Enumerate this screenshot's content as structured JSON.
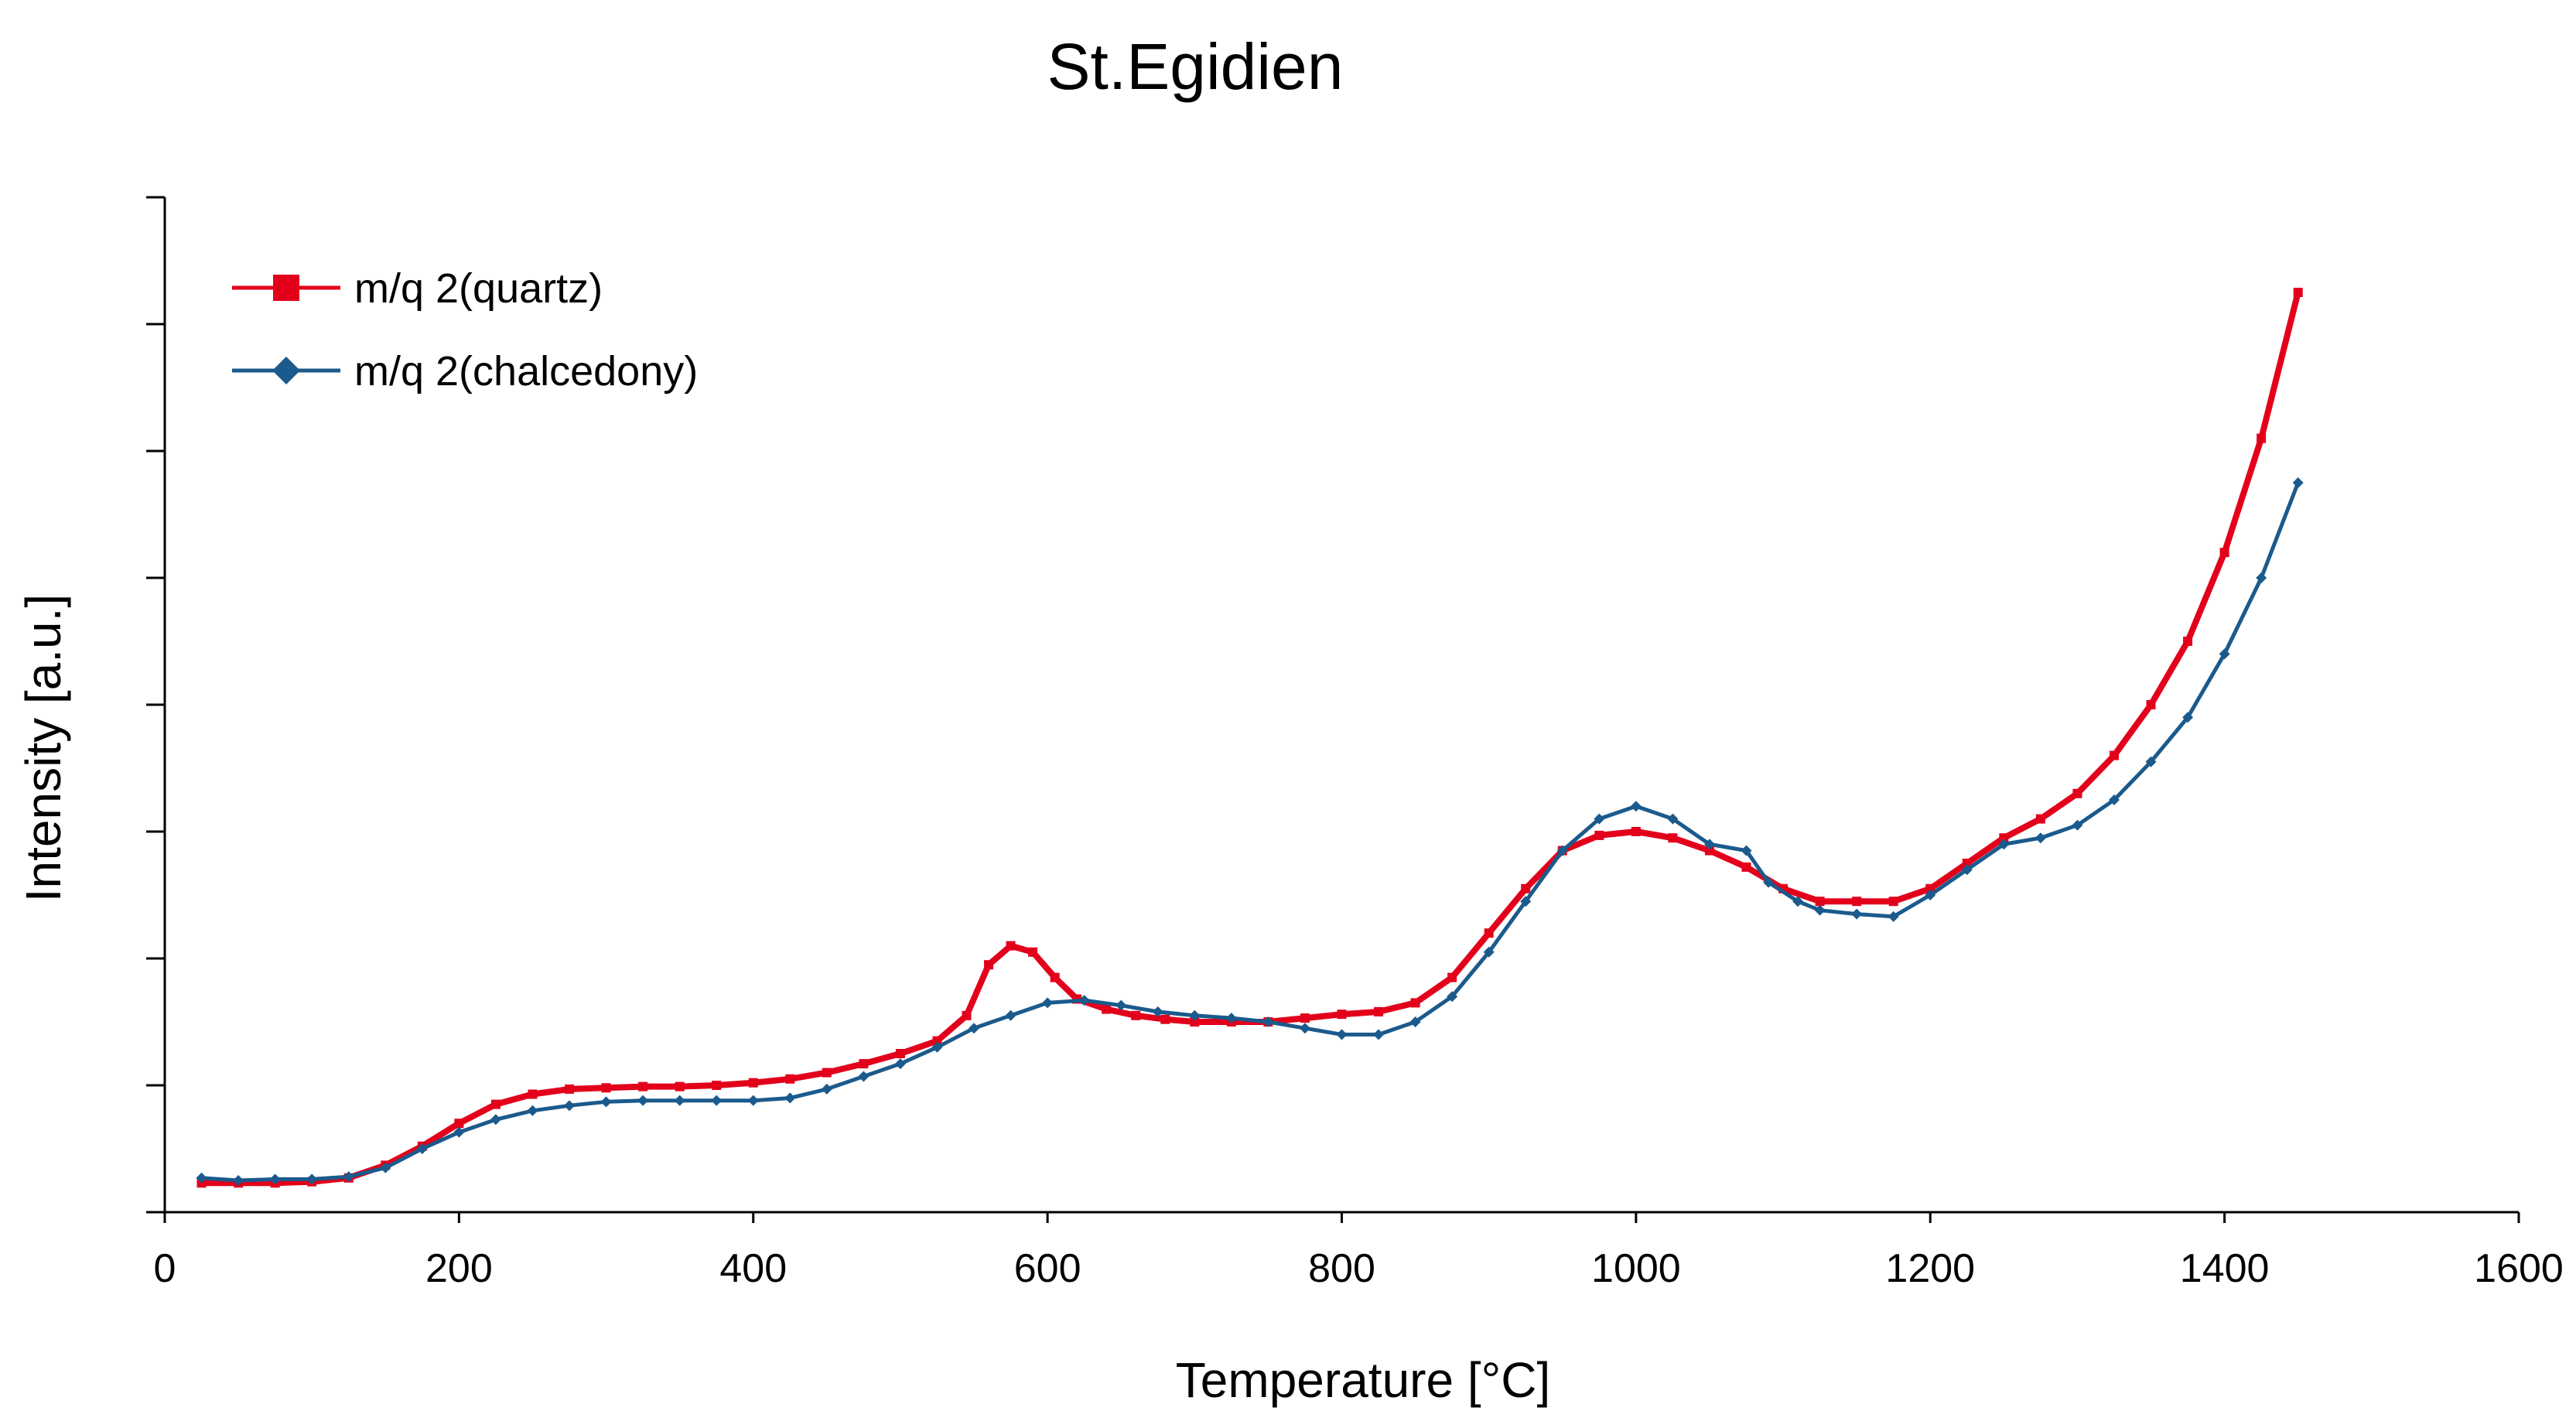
{
  "colors": {
    "quartz": "#e3001b",
    "chalcedony": "#1b5a8c",
    "axis": "#000000"
  },
  "chart_data": {
    "type": "line",
    "title": "St.Egidien",
    "xlabel": "Temperature [°C]",
    "ylabel": "Intensity [a.u.]",
    "xlim": [
      0,
      1600
    ],
    "ylim": [
      0,
      8
    ],
    "x_ticks": [
      0,
      200,
      400,
      600,
      800,
      1000,
      1200,
      1400,
      1600
    ],
    "x_tick_labels": [
      "0",
      "200",
      "400",
      "600",
      "800",
      "1000",
      "1200",
      "1400",
      "1600"
    ],
    "y_tick_count": 9,
    "y_tick_labels_shown": false,
    "grid": false,
    "legend_position": "top-left",
    "series": [
      {
        "name": "m/q 2(quartz)",
        "color_key": "quartz",
        "marker": "square",
        "points": [
          [
            25,
            0.23
          ],
          [
            50,
            0.23
          ],
          [
            75,
            0.23
          ],
          [
            100,
            0.24
          ],
          [
            125,
            0.27
          ],
          [
            150,
            0.37
          ],
          [
            175,
            0.52
          ],
          [
            200,
            0.7
          ],
          [
            225,
            0.85
          ],
          [
            250,
            0.93
          ],
          [
            275,
            0.97
          ],
          [
            300,
            0.98
          ],
          [
            325,
            0.99
          ],
          [
            350,
            0.99
          ],
          [
            375,
            1.0
          ],
          [
            400,
            1.02
          ],
          [
            425,
            1.05
          ],
          [
            450,
            1.1
          ],
          [
            475,
            1.17
          ],
          [
            500,
            1.25
          ],
          [
            525,
            1.35
          ],
          [
            545,
            1.55
          ],
          [
            560,
            1.95
          ],
          [
            575,
            2.1
          ],
          [
            590,
            2.05
          ],
          [
            605,
            1.85
          ],
          [
            620,
            1.68
          ],
          [
            640,
            1.6
          ],
          [
            660,
            1.55
          ],
          [
            680,
            1.52
          ],
          [
            700,
            1.5
          ],
          [
            725,
            1.5
          ],
          [
            750,
            1.5
          ],
          [
            775,
            1.53
          ],
          [
            800,
            1.56
          ],
          [
            825,
            1.58
          ],
          [
            850,
            1.65
          ],
          [
            875,
            1.85
          ],
          [
            900,
            2.2
          ],
          [
            925,
            2.55
          ],
          [
            950,
            2.85
          ],
          [
            975,
            2.97
          ],
          [
            1000,
            3.0
          ],
          [
            1025,
            2.95
          ],
          [
            1050,
            2.85
          ],
          [
            1075,
            2.72
          ],
          [
            1100,
            2.55
          ],
          [
            1125,
            2.45
          ],
          [
            1150,
            2.45
          ],
          [
            1175,
            2.45
          ],
          [
            1200,
            2.55
          ],
          [
            1225,
            2.75
          ],
          [
            1250,
            2.95
          ],
          [
            1275,
            3.1
          ],
          [
            1300,
            3.3
          ],
          [
            1325,
            3.6
          ],
          [
            1350,
            4.0
          ],
          [
            1375,
            4.5
          ],
          [
            1400,
            5.2
          ],
          [
            1425,
            6.1
          ],
          [
            1450,
            7.25
          ]
        ]
      },
      {
        "name": "m/q 2(chalcedony)",
        "color_key": "chalcedony",
        "marker": "diamond",
        "points": [
          [
            25,
            0.27
          ],
          [
            50,
            0.25
          ],
          [
            75,
            0.26
          ],
          [
            100,
            0.26
          ],
          [
            125,
            0.28
          ],
          [
            150,
            0.35
          ],
          [
            175,
            0.5
          ],
          [
            200,
            0.63
          ],
          [
            225,
            0.73
          ],
          [
            250,
            0.8
          ],
          [
            275,
            0.84
          ],
          [
            300,
            0.87
          ],
          [
            325,
            0.88
          ],
          [
            350,
            0.88
          ],
          [
            375,
            0.88
          ],
          [
            400,
            0.88
          ],
          [
            425,
            0.9
          ],
          [
            450,
            0.97
          ],
          [
            475,
            1.07
          ],
          [
            500,
            1.17
          ],
          [
            525,
            1.3
          ],
          [
            550,
            1.45
          ],
          [
            575,
            1.55
          ],
          [
            600,
            1.65
          ],
          [
            625,
            1.67
          ],
          [
            650,
            1.63
          ],
          [
            675,
            1.58
          ],
          [
            700,
            1.55
          ],
          [
            725,
            1.53
          ],
          [
            750,
            1.5
          ],
          [
            775,
            1.45
          ],
          [
            800,
            1.4
          ],
          [
            825,
            1.4
          ],
          [
            850,
            1.5
          ],
          [
            875,
            1.7
          ],
          [
            900,
            2.05
          ],
          [
            925,
            2.45
          ],
          [
            950,
            2.85
          ],
          [
            975,
            3.1
          ],
          [
            1000,
            3.2
          ],
          [
            1025,
            3.1
          ],
          [
            1050,
            2.9
          ],
          [
            1075,
            2.85
          ],
          [
            1090,
            2.6
          ],
          [
            1110,
            2.45
          ],
          [
            1125,
            2.38
          ],
          [
            1150,
            2.35
          ],
          [
            1175,
            2.33
          ],
          [
            1200,
            2.5
          ],
          [
            1225,
            2.7
          ],
          [
            1250,
            2.9
          ],
          [
            1275,
            2.95
          ],
          [
            1300,
            3.05
          ],
          [
            1325,
            3.25
          ],
          [
            1350,
            3.55
          ],
          [
            1375,
            3.9
          ],
          [
            1400,
            4.4
          ],
          [
            1425,
            5.0
          ],
          [
            1450,
            5.75
          ]
        ]
      }
    ]
  }
}
